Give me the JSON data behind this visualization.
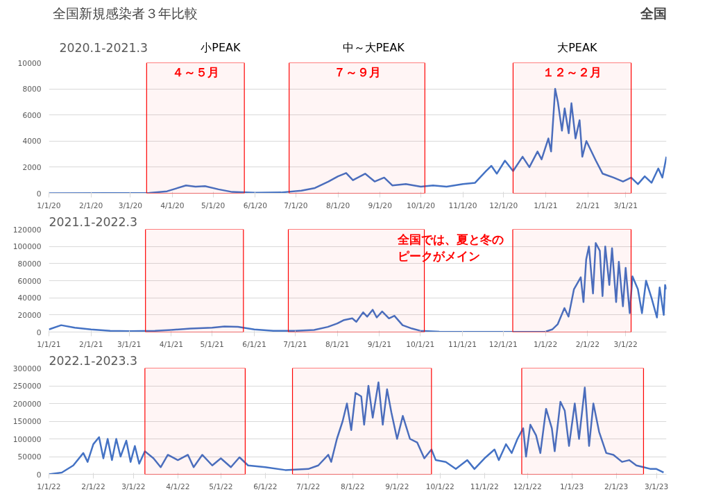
{
  "chart_data": [
    {
      "type": "line",
      "title": "2020.1-2021.3",
      "annotations": [
        "全国新規感染者３年比較",
        "全国",
        "小PEAK",
        "中～大PEAK",
        "大PEAK"
      ],
      "series": [
        {
          "color": "#4472c4",
          "x": [
            "2020-01-01",
            "2020-02-15",
            "2020-03-15",
            "2020-03-28",
            "2020-04-11",
            "2020-04-18",
            "2020-04-25",
            "2020-05-05",
            "2020-05-15",
            "2020-06-01",
            "2020-06-20",
            "2020-07-05",
            "2020-07-15",
            "2020-07-25",
            "2020-08-01",
            "2020-08-07",
            "2020-08-12",
            "2020-08-21",
            "2020-08-28",
            "2020-09-04",
            "2020-09-10",
            "2020-09-20",
            "2020-10-01",
            "2020-10-10",
            "2020-10-20",
            "2020-11-01",
            "2020-11-10",
            "2020-11-18",
            "2020-11-22",
            "2020-11-26",
            "2020-12-02",
            "2020-12-08",
            "2020-12-15",
            "2020-12-20",
            "2020-12-26",
            "2020-12-29",
            "2021-01-03",
            "2021-01-05",
            "2021-01-08",
            "2021-01-10",
            "2021-01-13",
            "2021-01-15",
            "2021-01-18",
            "2021-01-20",
            "2021-01-23",
            "2021-01-26",
            "2021-01-28",
            "2021-01-31",
            "2021-02-07",
            "2021-02-12",
            "2021-02-20",
            "2021-02-27",
            "2021-03-05",
            "2021-03-10",
            "2021-03-15",
            "2021-03-20",
            "2021-03-25",
            "2021-03-28",
            "2021-03-31"
          ],
          "values": [
            0,
            10,
            30,
            150,
            600,
            500,
            550,
            300,
            100,
            40,
            60,
            200,
            400,
            900,
            1300,
            1550,
            1000,
            1500,
            900,
            1200,
            600,
            700,
            500,
            600,
            500,
            700,
            800,
            1700,
            2100,
            1500,
            2500,
            1700,
            2800,
            2000,
            3200,
            2600,
            4200,
            3200,
            8000,
            7000,
            4800,
            6500,
            4600,
            6900,
            4200,
            5600,
            2800,
            4000,
            2500,
            1500,
            1200,
            900,
            1200,
            700,
            1300,
            800,
            1900,
            1200,
            2800
          ]
        }
      ],
      "xlim": [
        "2020-01-01",
        "2021-03-31"
      ],
      "xticks": [
        {
          "value": "2020-01-01",
          "label": "1/1/20"
        },
        {
          "value": "2020-02-01",
          "label": "2/1/20"
        },
        {
          "value": "2020-03-01",
          "label": "3/1/20"
        },
        {
          "value": "2020-04-01",
          "label": "4/1/20"
        },
        {
          "value": "2020-05-01",
          "label": "5/1/20"
        },
        {
          "value": "2020-06-01",
          "label": "6/1/20"
        },
        {
          "value": "2020-07-01",
          "label": "7/1/20"
        },
        {
          "value": "2020-08-01",
          "label": "8/1/20"
        },
        {
          "value": "2020-09-01",
          "label": "9/1/20"
        },
        {
          "value": "2020-10-01",
          "label": "10/1/20"
        },
        {
          "value": "2020-11-01",
          "label": "11/1/20"
        },
        {
          "value": "2020-12-01",
          "label": "12/1/20"
        },
        {
          "value": "2021-01-01",
          "label": "1/1/21"
        },
        {
          "value": "2021-02-01",
          "label": "2/1/21"
        },
        {
          "value": "2021-03-01",
          "label": "3/1/21"
        }
      ],
      "ylim": [
        0,
        10000
      ],
      "yticks": [
        0,
        2000,
        4000,
        6000,
        8000,
        10000
      ],
      "grid": "y",
      "marker": "none",
      "line_style": "solid",
      "bands": [
        {
          "axis": "x",
          "from": "2020-03-13",
          "to": "2020-05-24",
          "label": "４～５月",
          "color": "#ff0000"
        },
        {
          "axis": "x",
          "from": "2020-06-26",
          "to": "2020-10-04",
          "label": "７～９月",
          "color": "#ff0000"
        },
        {
          "axis": "x",
          "from": "2020-12-08",
          "to": "2021-03-05",
          "label": "１２～２月",
          "color": "#ff0000"
        }
      ]
    },
    {
      "type": "line",
      "title": "2021.1-2022.3",
      "annotations": [
        "全国では、夏と冬のピークがメイン"
      ],
      "series": [
        {
          "color": "#4472c4",
          "x": [
            "2021-01-01",
            "2021-01-10",
            "2021-01-20",
            "2021-02-01",
            "2021-02-15",
            "2021-03-01",
            "2021-03-20",
            "2021-04-01",
            "2021-04-15",
            "2021-05-01",
            "2021-05-10",
            "2021-05-20",
            "2021-06-01",
            "2021-06-15",
            "2021-07-01",
            "2021-07-15",
            "2021-07-25",
            "2021-08-01",
            "2021-08-06",
            "2021-08-12",
            "2021-08-15",
            "2021-08-20",
            "2021-08-23",
            "2021-08-27",
            "2021-08-30",
            "2021-09-03",
            "2021-09-08",
            "2021-09-12",
            "2021-09-18",
            "2021-09-25",
            "2021-10-01",
            "2021-10-15",
            "2021-11-01",
            "2021-12-01",
            "2021-12-25",
            "2022-01-01",
            "2022-01-06",
            "2022-01-10",
            "2022-01-15",
            "2022-01-18",
            "2022-01-22",
            "2022-01-27",
            "2022-01-29",
            "2022-01-31",
            "2022-02-02",
            "2022-02-05",
            "2022-02-07",
            "2022-02-10",
            "2022-02-12",
            "2022-02-14",
            "2022-02-17",
            "2022-02-19",
            "2022-02-22",
            "2022-02-24",
            "2022-02-27",
            "2022-03-01",
            "2022-03-04",
            "2022-03-06",
            "2022-03-10",
            "2022-03-13",
            "2022-03-16",
            "2022-03-20",
            "2022-03-24",
            "2022-03-26",
            "2022-03-29",
            "2022-03-30",
            "2022-03-31"
          ],
          "values": [
            3000,
            8000,
            5000,
            3000,
            1500,
            1000,
            1500,
            2500,
            4000,
            5000,
            6500,
            6000,
            3000,
            1500,
            1500,
            2500,
            6000,
            10000,
            14000,
            16000,
            12000,
            23000,
            18000,
            26000,
            17000,
            24000,
            16000,
            19000,
            8000,
            4000,
            1500,
            500,
            200,
            200,
            200,
            500,
            3000,
            9000,
            28000,
            18000,
            50000,
            64000,
            35000,
            85000,
            100000,
            45000,
            104000,
            95000,
            42000,
            100000,
            55000,
            98000,
            35000,
            82000,
            30000,
            75000,
            22000,
            65000,
            50000,
            22000,
            60000,
            40000,
            17000,
            52000,
            20000,
            55000,
            50000
          ]
        }
      ],
      "xlim": [
        "2021-01-01",
        "2022-03-31"
      ],
      "xticks": [
        {
          "value": "2021-01-01",
          "label": "1/1/21"
        },
        {
          "value": "2021-02-01",
          "label": "2/1/21"
        },
        {
          "value": "2021-03-01",
          "label": "3/1/21"
        },
        {
          "value": "2021-04-01",
          "label": "4/1/21"
        },
        {
          "value": "2021-05-01",
          "label": "5/1/21"
        },
        {
          "value": "2021-06-01",
          "label": "6/1/21"
        },
        {
          "value": "2021-07-01",
          "label": "7/1/21"
        },
        {
          "value": "2021-08-01",
          "label": "8/1/21"
        },
        {
          "value": "2021-09-01",
          "label": "9/1/21"
        },
        {
          "value": "2021-10-01",
          "label": "10/1/21"
        },
        {
          "value": "2021-11-01",
          "label": "11/1/21"
        },
        {
          "value": "2021-12-01",
          "label": "12/1/21"
        },
        {
          "value": "2022-01-01",
          "label": "1/1/22"
        },
        {
          "value": "2022-02-01",
          "label": "2/1/22"
        },
        {
          "value": "2022-03-01",
          "label": "3/1/22"
        }
      ],
      "ylim": [
        0,
        120000
      ],
      "yticks": [
        0,
        20000,
        40000,
        60000,
        80000,
        100000,
        120000
      ],
      "grid": "y",
      "marker": "none",
      "line_style": "solid",
      "bands": [
        {
          "axis": "x",
          "from": "2021-03-13",
          "to": "2021-05-24",
          "color": "#ff0000"
        },
        {
          "axis": "x",
          "from": "2021-06-26",
          "to": "2021-10-04",
          "color": "#ff0000"
        },
        {
          "axis": "x",
          "from": "2021-12-08",
          "to": "2022-03-05",
          "color": "#ff0000"
        }
      ]
    },
    {
      "type": "line",
      "title": "2022.1-2023.3",
      "series": [
        {
          "color": "#4472c4",
          "x": [
            "2022-01-01",
            "2022-01-10",
            "2022-01-18",
            "2022-01-25",
            "2022-01-28",
            "2022-02-01",
            "2022-02-05",
            "2022-02-08",
            "2022-02-11",
            "2022-02-14",
            "2022-02-17",
            "2022-02-20",
            "2022-02-24",
            "2022-02-27",
            "2022-03-02",
            "2022-03-05",
            "2022-03-09",
            "2022-03-15",
            "2022-03-20",
            "2022-03-25",
            "2022-04-01",
            "2022-04-08",
            "2022-04-12",
            "2022-04-18",
            "2022-04-25",
            "2022-05-01",
            "2022-05-08",
            "2022-05-14",
            "2022-05-20",
            "2022-06-01",
            "2022-06-15",
            "2022-07-01",
            "2022-07-08",
            "2022-07-15",
            "2022-07-17",
            "2022-07-21",
            "2022-07-25",
            "2022-07-28",
            "2022-07-31",
            "2022-08-03",
            "2022-08-07",
            "2022-08-09",
            "2022-08-12",
            "2022-08-15",
            "2022-08-19",
            "2022-08-22",
            "2022-08-25",
            "2022-08-28",
            "2022-09-01",
            "2022-09-05",
            "2022-09-10",
            "2022-09-15",
            "2022-09-20",
            "2022-09-25",
            "2022-09-28",
            "2022-10-05",
            "2022-10-12",
            "2022-10-20",
            "2022-10-25",
            "2022-11-01",
            "2022-11-08",
            "2022-11-11",
            "2022-11-16",
            "2022-11-20",
            "2022-11-24",
            "2022-11-28",
            "2022-11-30",
            "2022-12-03",
            "2022-12-07",
            "2022-12-10",
            "2022-12-14",
            "2022-12-18",
            "2022-12-20",
            "2022-12-24",
            "2022-12-27",
            "2022-12-30",
            "2023-01-03",
            "2023-01-06",
            "2023-01-10",
            "2023-01-13",
            "2023-01-16",
            "2023-01-20",
            "2023-01-25",
            "2023-01-30",
            "2023-02-05",
            "2023-02-10",
            "2023-02-15",
            "2023-02-20",
            "2023-02-25",
            "2023-03-01",
            "2023-03-06"
          ],
          "values": [
            0,
            5000,
            25000,
            60000,
            35000,
            85000,
            105000,
            45000,
            100000,
            40000,
            100000,
            50000,
            95000,
            35000,
            80000,
            30000,
            65000,
            45000,
            20000,
            55000,
            40000,
            55000,
            20000,
            55000,
            25000,
            45000,
            20000,
            48000,
            25000,
            20000,
            12000,
            15000,
            25000,
            55000,
            35000,
            100000,
            150000,
            200000,
            125000,
            230000,
            220000,
            140000,
            250000,
            160000,
            260000,
            140000,
            240000,
            175000,
            100000,
            165000,
            100000,
            90000,
            45000,
            70000,
            40000,
            35000,
            15000,
            40000,
            15000,
            45000,
            70000,
            40000,
            85000,
            60000,
            100000,
            130000,
            50000,
            140000,
            110000,
            60000,
            185000,
            130000,
            65000,
            205000,
            180000,
            80000,
            200000,
            100000,
            245000,
            80000,
            200000,
            120000,
            60000,
            55000,
            35000,
            40000,
            25000,
            20000,
            15000,
            15000,
            5000
          ]
        }
      ],
      "xlim": [
        "2022-01-01",
        "2023-03-08"
      ],
      "xticks": [
        {
          "value": "2022-01-01",
          "label": "1/1/22"
        },
        {
          "value": "2022-02-01",
          "label": "2/1/22"
        },
        {
          "value": "2022-03-01",
          "label": "3/1/22"
        },
        {
          "value": "2022-04-01",
          "label": "4/1/22"
        },
        {
          "value": "2022-05-01",
          "label": "5/1/22"
        },
        {
          "value": "2022-06-01",
          "label": "6/1/22"
        },
        {
          "value": "2022-07-01",
          "label": "7/1/22"
        },
        {
          "value": "2022-08-01",
          "label": "8/1/22"
        },
        {
          "value": "2022-09-01",
          "label": "9/1/22"
        },
        {
          "value": "2022-10-01",
          "label": "10/1/22"
        },
        {
          "value": "2022-11-01",
          "label": "11/1/22"
        },
        {
          "value": "2022-12-01",
          "label": "12/1/22"
        },
        {
          "value": "2023-01-01",
          "label": "1/1/23"
        },
        {
          "value": "2023-02-01",
          "label": "2/1/23"
        },
        {
          "value": "2023-03-01",
          "label": "3/1/23"
        }
      ],
      "ylim": [
        0,
        300000
      ],
      "yticks": [
        0,
        50000,
        100000,
        150000,
        200000,
        250000,
        300000
      ],
      "grid": "y",
      "marker": "none",
      "line_style": "solid",
      "bands": [
        {
          "axis": "x",
          "from": "2022-03-09",
          "to": "2022-05-18",
          "color": "#ff0000"
        },
        {
          "axis": "x",
          "from": "2022-06-20",
          "to": "2022-09-25",
          "color": "#ff0000"
        },
        {
          "axis": "x",
          "from": "2022-11-27",
          "to": "2023-02-20",
          "color": "#ff0000"
        }
      ]
    }
  ]
}
